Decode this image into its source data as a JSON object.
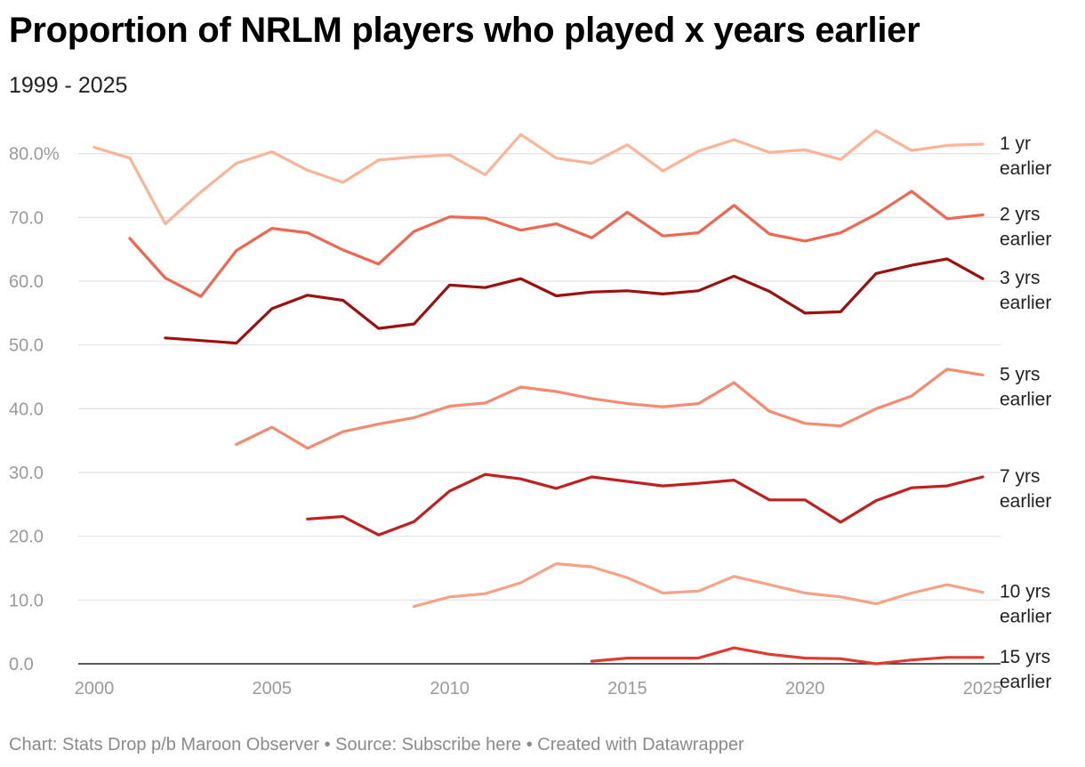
{
  "title": "Proportion of NRLM players who played x years earlier",
  "subtitle": "1999 - 2025",
  "footer": "Chart: Stats Drop p/b Maroon Observer • Source: Subscribe here • Created with Datawrapper",
  "chart_data": {
    "type": "line",
    "title": "Proportion of NRLM players who played x years earlier",
    "subtitle": "1999 - 2025",
    "xlabel": "",
    "ylabel": "",
    "xlim": [
      2000,
      2025
    ],
    "ylim": [
      0,
      85
    ],
    "x_ticks": [
      "2000",
      "2005",
      "2010",
      "2015",
      "2020",
      "2025"
    ],
    "y_ticks": [
      {
        "value": 0,
        "label": "0.0"
      },
      {
        "value": 10,
        "label": "10.0"
      },
      {
        "value": 20,
        "label": "20.0"
      },
      {
        "value": 30,
        "label": "30.0"
      },
      {
        "value": 40,
        "label": "40.0"
      },
      {
        "value": 50,
        "label": "50.0"
      },
      {
        "value": 60,
        "label": "60.0"
      },
      {
        "value": 70,
        "label": "70.0"
      },
      {
        "value": 80,
        "label": "80.0%"
      }
    ],
    "grid": true,
    "legend": "direct labels at line ends",
    "series": [
      {
        "name": "1 yr earlier",
        "color": "#fbb496",
        "x": [
          2000,
          2001,
          2002,
          2003,
          2004,
          2005,
          2006,
          2007,
          2008,
          2009,
          2010,
          2011,
          2012,
          2013,
          2014,
          2015,
          2016,
          2017,
          2018,
          2019,
          2020,
          2021,
          2022,
          2023,
          2024,
          2025
        ],
        "values": [
          81.0,
          79.3,
          69.0,
          74.0,
          78.5,
          80.3,
          77.4,
          75.5,
          79.0,
          79.5,
          79.8,
          76.7,
          83.0,
          79.3,
          78.5,
          81.4,
          77.3,
          80.4,
          82.2,
          80.2,
          80.6,
          79.1,
          83.6,
          80.5,
          81.3,
          81.5
        ]
      },
      {
        "name": "2 yrs earlier",
        "color": "#f06650",
        "x": [
          2001,
          2002,
          2003,
          2004,
          2005,
          2006,
          2007,
          2008,
          2009,
          2010,
          2011,
          2012,
          2013,
          2014,
          2015,
          2016,
          2017,
          2018,
          2019,
          2020,
          2021,
          2022,
          2023,
          2024,
          2025
        ],
        "values": [
          66.7,
          60.5,
          57.6,
          64.8,
          68.3,
          67.6,
          64.9,
          62.7,
          67.8,
          70.1,
          69.9,
          68.0,
          69.0,
          66.8,
          70.8,
          67.1,
          67.6,
          71.9,
          67.4,
          66.3,
          67.6,
          70.5,
          74.1,
          69.8,
          70.4
        ]
      },
      {
        "name": "3 yrs earlier",
        "color": "#9e0f0f",
        "x": [
          2002,
          2003,
          2004,
          2005,
          2006,
          2007,
          2008,
          2009,
          2010,
          2011,
          2012,
          2013,
          2014,
          2015,
          2016,
          2017,
          2018,
          2019,
          2020,
          2021,
          2022,
          2023,
          2024,
          2025
        ],
        "values": [
          51.1,
          50.7,
          50.3,
          55.7,
          57.8,
          57.0,
          52.6,
          53.3,
          59.4,
          59.0,
          60.4,
          57.7,
          58.3,
          58.5,
          58.0,
          58.5,
          60.8,
          58.4,
          55.0,
          55.2,
          61.2,
          62.5,
          63.5,
          60.4
        ]
      },
      {
        "name": "5 yrs earlier",
        "color": "#f58a70",
        "x": [
          2004,
          2005,
          2006,
          2007,
          2008,
          2009,
          2010,
          2011,
          2012,
          2013,
          2014,
          2015,
          2016,
          2017,
          2018,
          2019,
          2020,
          2021,
          2022,
          2023,
          2024,
          2025
        ],
        "values": [
          34.4,
          37.1,
          33.8,
          36.4,
          37.6,
          38.6,
          40.4,
          40.9,
          43.4,
          42.7,
          41.6,
          40.8,
          40.3,
          40.8,
          44.1,
          39.6,
          37.7,
          37.3,
          40.0,
          42.0,
          46.2,
          45.3
        ]
      },
      {
        "name": "7 yrs earlier",
        "color": "#c31e1e",
        "x": [
          2006,
          2007,
          2008,
          2009,
          2010,
          2011,
          2012,
          2013,
          2014,
          2015,
          2016,
          2017,
          2018,
          2019,
          2020,
          2021,
          2022,
          2023,
          2024,
          2025
        ],
        "values": [
          22.7,
          23.1,
          20.2,
          22.3,
          27.1,
          29.7,
          29.0,
          27.5,
          29.3,
          28.6,
          27.9,
          28.3,
          28.8,
          25.7,
          25.7,
          22.2,
          25.6,
          27.6,
          27.9,
          29.3
        ]
      },
      {
        "name": "10 yrs earlier",
        "color": "#f8a285",
        "x": [
          2009,
          2010,
          2011,
          2012,
          2013,
          2014,
          2015,
          2016,
          2017,
          2018,
          2019,
          2020,
          2021,
          2022,
          2023,
          2024,
          2025
        ],
        "values": [
          9.0,
          10.5,
          11.0,
          12.7,
          15.7,
          15.2,
          13.5,
          11.1,
          11.4,
          13.7,
          12.4,
          11.1,
          10.5,
          9.4,
          11.1,
          12.4,
          11.2
        ]
      },
      {
        "name": "15 yrs earlier",
        "color": "#df3b30",
        "x": [
          2014,
          2015,
          2016,
          2017,
          2018,
          2019,
          2020,
          2021,
          2022,
          2023,
          2024,
          2025
        ],
        "values": [
          0.4,
          0.9,
          0.9,
          0.9,
          2.5,
          1.5,
          0.9,
          0.8,
          0.0,
          0.6,
          1.0,
          1.0
        ]
      }
    ],
    "series_labels": [
      {
        "line1": "1 yr",
        "line2": "earlier"
      },
      {
        "line1": "2 yrs",
        "line2": "earlier"
      },
      {
        "line1": "3 yrs",
        "line2": "earlier"
      },
      {
        "line1": "5 yrs",
        "line2": "earlier"
      },
      {
        "line1": "7 yrs",
        "line2": "earlier"
      },
      {
        "line1": "10 yrs",
        "line2": "earlier"
      },
      {
        "line1": "15 yrs",
        "line2": "earlier"
      }
    ]
  }
}
